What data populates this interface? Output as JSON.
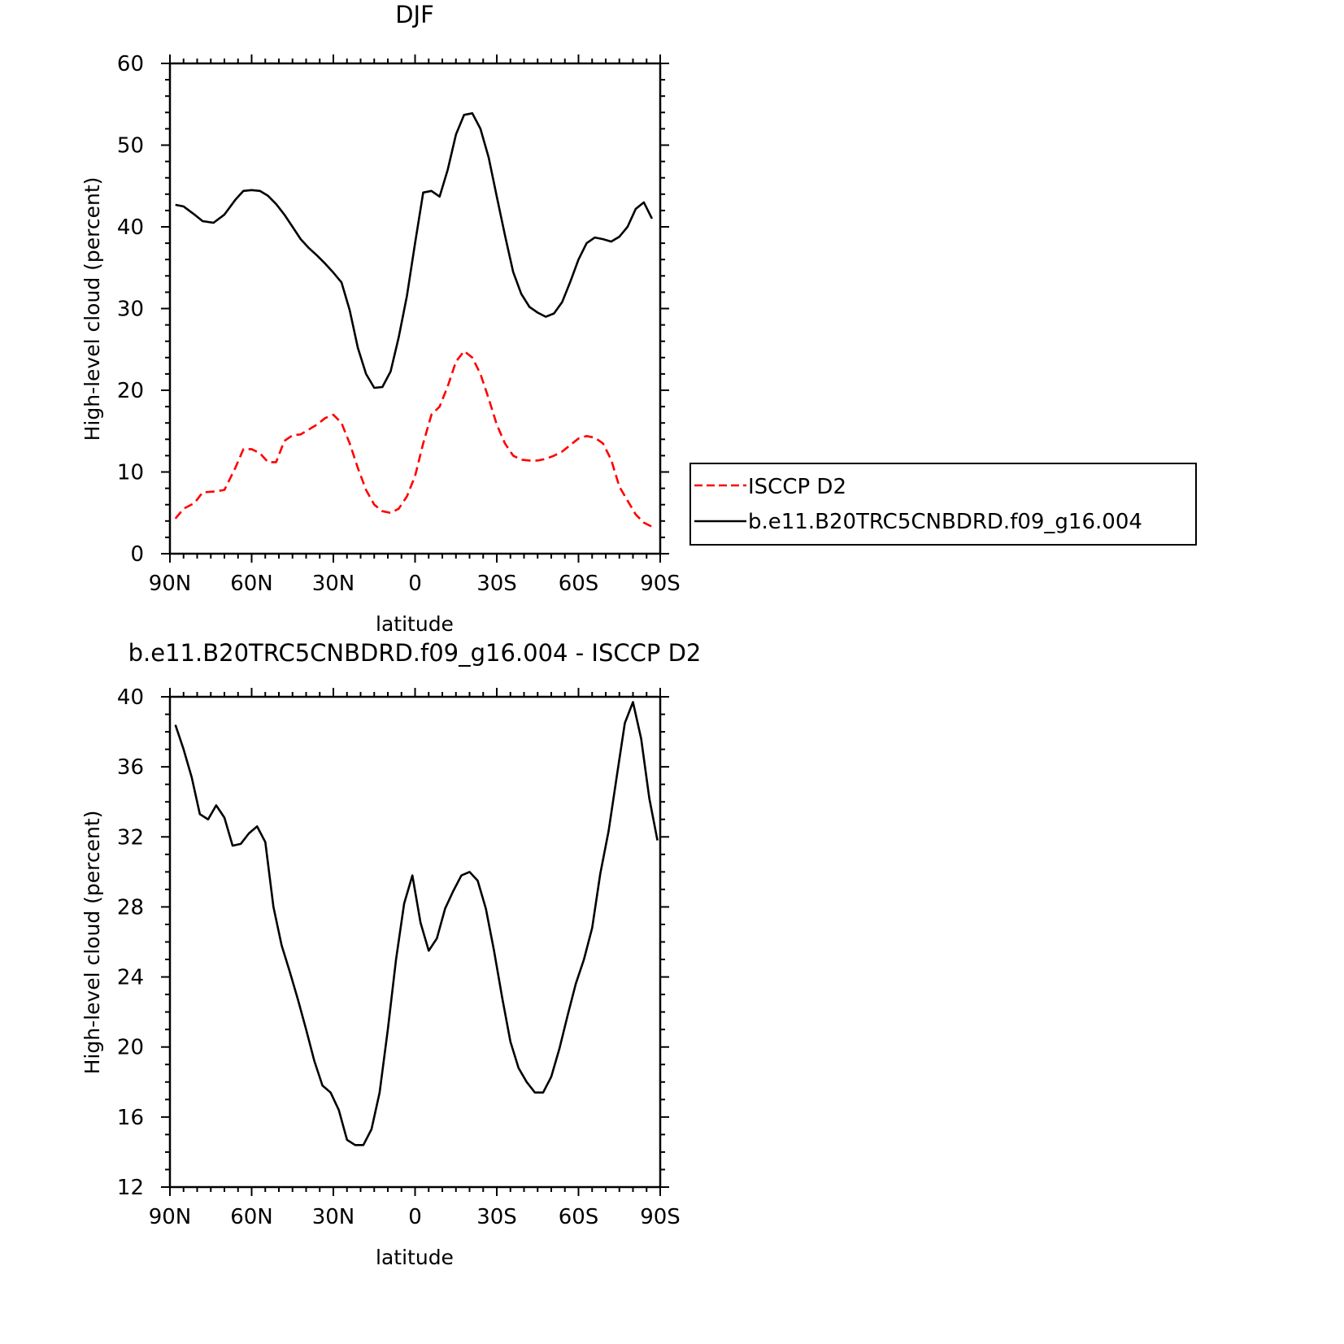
{
  "chart_data": [
    {
      "type": "line",
      "title": "DJF",
      "xlabel": "latitude",
      "ylabel": "High-level cloud (percent)",
      "xlim": [
        90,
        -90
      ],
      "ylim": [
        0,
        60
      ],
      "x_ticks": [
        90,
        60,
        30,
        0,
        -30,
        -60,
        -90
      ],
      "x_tick_labels": [
        "90N",
        "60N",
        "30N",
        "0",
        "30S",
        "60S",
        "90S"
      ],
      "y_ticks": [
        0,
        10,
        20,
        30,
        40,
        50,
        60
      ],
      "y_tick_labels": [
        "0",
        "10",
        "20",
        "30",
        "40",
        "50",
        "60"
      ],
      "grid": false,
      "legend_position": "right",
      "series": [
        {
          "name": "ISCCP D2",
          "color": "#ff0000",
          "dash": true,
          "x": [
            88,
            85,
            81,
            78,
            74,
            70,
            66,
            63,
            60,
            57,
            54,
            51,
            48,
            45,
            42,
            39,
            36,
            33,
            30,
            27,
            24,
            21,
            18,
            15,
            12,
            9,
            6,
            3,
            0,
            -3,
            -6,
            -9,
            -12,
            -15,
            -18,
            -21,
            -24,
            -27,
            -30,
            -33,
            -36,
            -39,
            -42,
            -45,
            -48,
            -51,
            -54,
            -57,
            -60,
            -63,
            -66,
            -69,
            -72,
            -75,
            -78,
            -81,
            -84,
            -87
          ],
          "y": [
            4.3,
            5.5,
            6.2,
            7.5,
            7.6,
            7.8,
            10.5,
            12.8,
            12.8,
            12.3,
            11.2,
            11.2,
            13.8,
            14.5,
            14.6,
            15.2,
            15.8,
            16.6,
            17.0,
            16.0,
            13.5,
            10.5,
            7.8,
            6.0,
            5.2,
            5.0,
            5.5,
            7.0,
            9.5,
            13.5,
            17.0,
            18.0,
            20.5,
            23.5,
            24.8,
            24.0,
            22.0,
            19.0,
            15.8,
            13.5,
            12.0,
            11.5,
            11.4,
            11.4,
            11.6,
            12.0,
            12.5,
            13.3,
            14.1,
            14.4,
            14.2,
            13.5,
            11.5,
            8.2,
            6.5,
            4.8,
            3.8,
            3.3
          ]
        },
        {
          "name": "b.e11.B20TRC5CNBDRD.f09_g16.004",
          "color": "#000000",
          "dash": false,
          "x": [
            88,
            85,
            81,
            78,
            74,
            70,
            66,
            63,
            60,
            57,
            54,
            51,
            48,
            45,
            42,
            39,
            36,
            33,
            30,
            27,
            24,
            21,
            18,
            15,
            12,
            9,
            6,
            3,
            0,
            -3,
            -6,
            -9,
            -12,
            -15,
            -18,
            -21,
            -24,
            -27,
            -30,
            -33,
            -36,
            -39,
            -42,
            -45,
            -48,
            -51,
            -54,
            -57,
            -60,
            -63,
            -66,
            -69,
            -72,
            -75,
            -78,
            -81,
            -84,
            -87
          ],
          "y": [
            42.7,
            42.5,
            41.5,
            40.7,
            40.5,
            41.5,
            43.3,
            44.4,
            44.5,
            44.4,
            43.8,
            42.8,
            41.5,
            40.0,
            38.5,
            37.4,
            36.5,
            35.5,
            34.4,
            33.2,
            29.8,
            25.2,
            22.0,
            20.3,
            20.4,
            22.3,
            26.5,
            31.5,
            38.0,
            44.2,
            44.4,
            43.7,
            47.0,
            51.3,
            53.7,
            53.9,
            52.0,
            48.5,
            43.7,
            39.0,
            34.5,
            31.8,
            30.2,
            29.5,
            29.0,
            29.4,
            30.8,
            33.3,
            36.0,
            38.0,
            38.7,
            38.5,
            38.2,
            38.8,
            40.0,
            42.2,
            43.0,
            41.0
          ]
        }
      ]
    },
    {
      "type": "line",
      "title": "b.e11.B20TRC5CNBDRD.f09_g16.004 - ISCCP D2",
      "xlabel": "latitude",
      "ylabel": "High-level cloud (percent)",
      "xlim": [
        90,
        -90
      ],
      "ylim": [
        12,
        40
      ],
      "x_ticks": [
        90,
        60,
        30,
        0,
        -30,
        -60,
        -90
      ],
      "x_tick_labels": [
        "90N",
        "60N",
        "30N",
        "0",
        "30S",
        "60S",
        "90S"
      ],
      "y_ticks": [
        12,
        16,
        20,
        24,
        28,
        32,
        36,
        40
      ],
      "y_tick_labels": [
        "12",
        "16",
        "20",
        "24",
        "28",
        "32",
        "36",
        "40"
      ],
      "grid": false,
      "series": [
        {
          "color": "#000000",
          "dash": false,
          "x": [
            88,
            85,
            82,
            79,
            76,
            73,
            70,
            67,
            64,
            61,
            58,
            55,
            52,
            49,
            46,
            43,
            40,
            37,
            34,
            31,
            28,
            25,
            22,
            19,
            16,
            13,
            10,
            7,
            4,
            1,
            -2,
            -5,
            -8,
            -11,
            -14,
            -17,
            -20,
            -23,
            -26,
            -29,
            -32,
            -35,
            -38,
            -41,
            -44,
            -47,
            -50,
            -53,
            -56,
            -59,
            -62,
            -65,
            -68,
            -71,
            -74,
            -77,
            -80,
            -83,
            -86,
            -89
          ],
          "y": [
            38.4,
            37.0,
            35.4,
            33.3,
            33.0,
            33.8,
            33.1,
            31.5,
            31.6,
            32.2,
            32.6,
            31.7,
            28.0,
            25.8,
            24.3,
            22.7,
            21.0,
            19.2,
            17.8,
            17.4,
            16.4,
            14.7,
            14.4,
            14.4,
            15.3,
            17.4,
            21.0,
            25.0,
            28.2,
            29.8,
            27.1,
            25.5,
            26.2,
            27.9,
            28.9,
            29.8,
            30.0,
            29.5,
            27.9,
            25.5,
            22.8,
            20.3,
            18.8,
            18.0,
            17.4,
            17.4,
            18.3,
            19.9,
            21.8,
            23.6,
            25.0,
            26.8,
            29.9,
            32.3,
            35.4,
            38.5,
            39.7,
            37.6,
            34.2,
            31.8
          ]
        }
      ]
    }
  ],
  "legend": {
    "entries": [
      "ISCCP D2",
      "b.e11.B20TRC5CNBDRD.f09_g16.004"
    ]
  }
}
